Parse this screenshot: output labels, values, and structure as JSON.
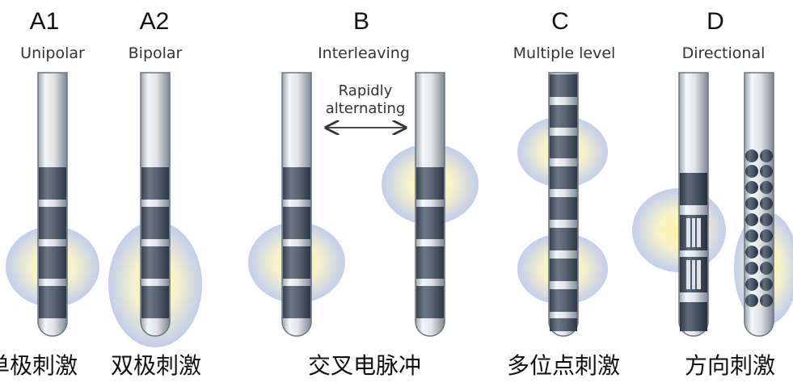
{
  "panels": [
    {
      "letter": "A1",
      "title": "Unipolar",
      "label_cn": "单极刺激"
    },
    {
      "letter": "A2",
      "title": "Bipolar",
      "label_cn": "双极刺激"
    },
    {
      "letter": "B",
      "title": "Interleaving",
      "label_cn": "交叉电脉冲"
    },
    {
      "letter": "C",
      "title": "Multiple level",
      "label_cn": "多位点刺激"
    },
    {
      "letter": "D",
      "title": "Directional",
      "label_cn": "方向刺激"
    }
  ],
  "interleaving_note": {
    "line1": "Rapidly",
    "line2": "alternating"
  },
  "colors": {
    "lead_light": "#d9dde2",
    "lead_dark": "#4d5a6b",
    "field_center": "#fff7a8",
    "field_edge": "#b3c0e6"
  }
}
